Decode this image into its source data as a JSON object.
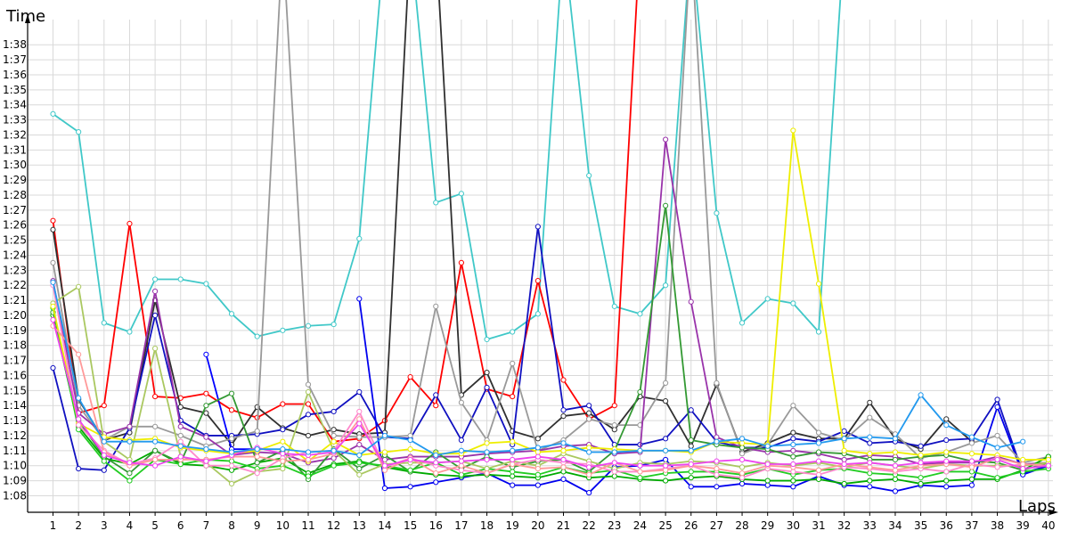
{
  "chart_data": {
    "type": "line",
    "title": "",
    "xlabel": "Laps",
    "ylabel": "Time",
    "x": [
      1,
      2,
      3,
      4,
      5,
      6,
      7,
      8,
      9,
      10,
      11,
      12,
      13,
      14,
      15,
      16,
      17,
      18,
      19,
      20,
      21,
      22,
      23,
      24,
      25,
      26,
      27,
      28,
      29,
      30,
      31,
      32,
      33,
      34,
      35,
      36,
      37,
      38,
      39,
      40
    ],
    "y_ticks": [
      "1:08",
      "1:09",
      "1:10",
      "1:11",
      "1:12",
      "1:13",
      "1:14",
      "1:15",
      "1:16",
      "1:17",
      "1:18",
      "1:19",
      "1:20",
      "1:21",
      "1:22",
      "1:23",
      "1:24",
      "1:25",
      "1:26",
      "1:27",
      "1:28",
      "1:29",
      "1:30",
      "1:31",
      "1:32",
      "1:33",
      "1:34",
      "1:35",
      "1:36",
      "1:37",
      "1:38"
    ],
    "y_tick_seconds": [
      68,
      69,
      70,
      71,
      72,
      73,
      74,
      75,
      76,
      77,
      78,
      79,
      80,
      81,
      82,
      83,
      84,
      85,
      86,
      87,
      88,
      89,
      90,
      91,
      92,
      93,
      94,
      95,
      96,
      97,
      98
    ],
    "ylim_seconds": [
      66.9,
      99.2
    ],
    "xlim": [
      0,
      40.6
    ],
    "grid": true,
    "legend": "none",
    "series": [
      {
        "color": "#40c8c8",
        "values": [
          93.4,
          92.2,
          79.5,
          78.9,
          82.4,
          82.4,
          82.1,
          80.1,
          78.6,
          79.0,
          79.3,
          79.4,
          85.1,
          105,
          105,
          87.5,
          88.1,
          78.4,
          78.9,
          80.1,
          105,
          89.3,
          80.6,
          80.1,
          82.0,
          105,
          86.8,
          79.5,
          81.1,
          80.8,
          78.9,
          105,
          null,
          null,
          null,
          null,
          null,
          null,
          null,
          null
        ]
      },
      {
        "color": "#ff0000",
        "values": [
          86.3,
          73.5,
          74.0,
          86.1,
          74.6,
          74.5,
          74.8,
          73.7,
          73.2,
          74.1,
          74.1,
          71.6,
          71.8,
          73.0,
          75.9,
          74.0,
          83.5,
          75.1,
          74.6,
          82.3,
          75.7,
          73.1,
          74.0,
          105,
          null,
          null,
          null,
          null,
          null,
          null,
          null,
          null,
          null,
          null,
          null,
          null,
          null,
          null,
          null,
          null
        ]
      },
      {
        "color": "#303030",
        "values": [
          85.7,
          74.4,
          71.7,
          72.2,
          81.0,
          73.9,
          73.5,
          71.4,
          73.9,
          72.5,
          72.0,
          72.4,
          72.1,
          72.2,
          105,
          null,
          null,
          null,
          null,
          null,
          null,
          null,
          null,
          null,
          null,
          null,
          null,
          null,
          null,
          null,
          null,
          null,
          null,
          null,
          null,
          null,
          null,
          null,
          null,
          null
        ]
      },
      {
        "color": "#303030",
        "values": [
          null,
          null,
          null,
          null,
          null,
          null,
          null,
          null,
          null,
          null,
          null,
          null,
          null,
          null,
          null,
          105,
          74.7,
          76.2,
          72.3,
          71.8,
          73.3,
          73.5,
          72.4,
          74.6,
          74.3,
          71.3,
          75.4,
          70.9,
          71.5,
          72.2,
          71.8,
          71.8,
          74.2,
          71.8,
          71.1,
          73.1,
          71.6,
          null,
          null,
          null
        ]
      },
      {
        "color": "#1010c0",
        "values": [
          76.5,
          69.8,
          69.7,
          72.5,
          80.0,
          73.0,
          72.0,
          72.0,
          72.1,
          72.4,
          73.4,
          73.6,
          74.9,
          71.9,
          71.8,
          74.7,
          71.7,
          75.2,
          71.4,
          85.9,
          73.7,
          74.0,
          71.4,
          71.4,
          71.8,
          73.7,
          71.6,
          71.2,
          71.2,
          71.8,
          71.6,
          72.3,
          71.5,
          71.6,
          71.3,
          71.7,
          71.8,
          74.4,
          69.5,
          70.0
        ]
      },
      {
        "color": "#0000ee",
        "values": [
          null,
          null,
          null,
          null,
          null,
          null,
          null,
          null,
          null,
          null,
          null,
          null,
          81.1,
          68.5,
          68.6,
          68.9,
          69.2,
          69.5,
          68.7,
          68.7,
          69.1,
          68.2,
          69.9,
          70.0,
          70.4,
          68.6,
          68.6,
          68.8,
          68.7,
          68.6,
          69.3,
          68.7,
          68.6,
          68.3,
          68.7,
          68.6,
          68.7,
          73.9,
          69.4,
          70.0
        ]
      },
      {
        "color": "#0000ff",
        "values": [
          null,
          null,
          null,
          null,
          null,
          null,
          77.4,
          71.1,
          71.1,
          null,
          null,
          null,
          null,
          null,
          null,
          null,
          null,
          null,
          null,
          null,
          null,
          null,
          null,
          null,
          null,
          null,
          null,
          null,
          null,
          null,
          null,
          null,
          null,
          null,
          null,
          null,
          null,
          null,
          null,
          null
        ]
      },
      {
        "color": "#999999",
        "values": [
          83.5,
          74.0,
          71.7,
          72.6,
          72.6,
          72.0,
          71.3,
          71.8,
          72.3,
          105,
          75.4,
          72.0,
          71.9,
          71.9,
          72.0,
          80.6,
          74.2,
          71.7,
          76.8,
          71.0,
          71.7,
          73.1,
          72.7,
          72.7,
          75.5,
          105,
          75.5,
          70.8,
          71.4,
          74.0,
          72.2,
          71.7,
          73.2,
          72.1,
          70.5,
          70.9,
          71.5,
          72.0,
          70.2,
          70.6
        ]
      },
      {
        "color": "#9933aa",
        "values": [
          82.3,
          73.5,
          72.1,
          72.6,
          81.6,
          72.6,
          71.9,
          70.7,
          70.9,
          70.8,
          70.2,
          70.5,
          71.4,
          70.4,
          70.6,
          70.6,
          70.6,
          70.8,
          70.9,
          71.0,
          71.3,
          71.4,
          70.8,
          70.9,
          91.7,
          80.9,
          71.9,
          71.2,
          70.9,
          71.0,
          70.8,
          70.4,
          70.7,
          70.6,
          70.1,
          70.2,
          70.2,
          70.6,
          70.1,
          70.2
        ]
      },
      {
        "color": "#00aa00",
        "values": [
          80.0,
          72.6,
          70.5,
          70.1,
          71.0,
          70.1,
          70.0,
          69.7,
          70.2,
          70.5,
          69.5,
          70.1,
          70.3,
          69.9,
          69.6,
          69.4,
          69.3,
          69.4,
          69.3,
          69.2,
          69.6,
          69.2,
          69.3,
          69.1,
          69.0,
          69.2,
          69.3,
          69.1,
          69.0,
          69.0,
          69.1,
          68.8,
          69.0,
          69.1,
          68.8,
          69.0,
          69.1,
          69.1,
          69.7,
          70.6
        ]
      },
      {
        "color": "#339933",
        "values": [
          80.2,
          73.0,
          70.6,
          69.5,
          71.0,
          70.2,
          74.0,
          74.8,
          70.2,
          71.0,
          69.1,
          71.1,
          69.8,
          70.7,
          69.6,
          70.9,
          69.8,
          70.6,
          69.9,
          70.3,
          70.4,
          69.6,
          71.0,
          74.9,
          87.3,
          71.7,
          71.4,
          71.2,
          71.1,
          70.6,
          70.9,
          70.8,
          70.4,
          70.4,
          70.6,
          70.7,
          70.3,
          70.2,
          69.7,
          70.2
        ]
      },
      {
        "color": "#22cc22",
        "values": [
          80.5,
          72.4,
          70.3,
          69.0,
          70.4,
          70.1,
          70.4,
          70.3,
          69.8,
          70.0,
          69.3,
          70.0,
          70.2,
          70.0,
          69.7,
          70.2,
          69.4,
          69.8,
          69.6,
          69.4,
          69.9,
          69.5,
          69.7,
          69.2,
          69.5,
          69.6,
          69.6,
          69.4,
          69.8,
          69.4,
          69.7,
          69.8,
          69.5,
          69.4,
          69.2,
          69.6,
          69.6,
          69.2,
          69.6,
          69.8
        ]
      },
      {
        "color": "#aac860",
        "values": [
          80.8,
          81.9,
          71.6,
          70.4,
          77.8,
          70.6,
          70.2,
          68.8,
          69.6,
          69.8,
          74.9,
          71.0,
          69.4,
          70.1,
          70.2,
          70.2,
          70.3,
          69.8,
          70.3,
          70.0,
          70.8,
          70.3,
          69.8,
          70.2,
          70.1,
          70.3,
          70.2,
          69.9,
          70.2,
          70.0,
          70.2,
          69.9,
          70.2,
          70.0,
          69.8,
          70.1,
          70.0,
          70.0,
          70.0,
          70.2
        ]
      },
      {
        "color": "#eeee00",
        "values": [
          80.6,
          72.8,
          71.9,
          71.7,
          71.8,
          71.2,
          71.0,
          70.8,
          71.0,
          71.6,
          70.3,
          71.6,
          70.7,
          70.9,
          71.1,
          70.8,
          70.8,
          71.5,
          71.6,
          70.9,
          71.0,
          71.2,
          71.1,
          71.0,
          71.0,
          70.9,
          71.6,
          71.5,
          71.4,
          92.3,
          82.1,
          71.0,
          70.8,
          70.9,
          70.7,
          70.9,
          70.8,
          70.7,
          70.4,
          70.4
        ]
      },
      {
        "color": "#ff88cc",
        "values": [
          82.0,
          72.7,
          71.0,
          70.1,
          70.5,
          71.6,
          70.0,
          70.0,
          69.5,
          70.5,
          70.9,
          71.0,
          73.6,
          69.9,
          70.5,
          70.0,
          69.7,
          69.5,
          70.1,
          70.4,
          70.2,
          70.1,
          69.6,
          69.6,
          69.8,
          70.0,
          69.4,
          69.2,
          69.8,
          69.6,
          69.4,
          69.9,
          69.8,
          69.6,
          69.8,
          69.6,
          70.1,
          69.9,
          70.1,
          70.0
        ]
      },
      {
        "color": "#ff9999",
        "values": [
          79.3,
          77.4,
          70.9,
          70.0,
          70.4,
          70.4,
          70.4,
          70.6,
          70.6,
          70.3,
          70.4,
          70.8,
          73.1,
          69.7,
          70.5,
          69.5,
          70.0,
          69.5,
          70.1,
          69.8,
          69.9,
          69.4,
          70.2,
          69.6,
          69.7,
          70.0,
          69.8,
          69.5,
          70.0,
          69.9,
          69.7,
          70.1,
          69.9,
          69.7,
          70.0,
          70.1,
          69.9,
          70.5,
          70.1,
          70.0
        ]
      },
      {
        "color": "#ee44ee",
        "values": [
          79.7,
          73.1,
          70.7,
          70.2,
          70.0,
          70.6,
          70.3,
          70.7,
          71.2,
          70.8,
          70.7,
          70.9,
          72.8,
          70.0,
          70.4,
          70.2,
          70.3,
          70.4,
          70.4,
          70.6,
          70.4,
          69.9,
          70.2,
          70.0,
          70.0,
          70.1,
          70.3,
          70.4,
          70.1,
          70.1,
          70.3,
          70.1,
          70.2,
          70.0,
          70.2,
          70.3,
          70.3,
          70.4,
          69.8,
          70.0
        ]
      },
      {
        "color": "#2299ee",
        "values": [
          82.2,
          74.5,
          71.6,
          71.6,
          71.6,
          71.3,
          71.1,
          70.9,
          71.1,
          71.1,
          70.9,
          71.0,
          70.7,
          72.0,
          71.7,
          70.7,
          71.0,
          70.9,
          71.0,
          71.2,
          71.5,
          70.9,
          70.9,
          71.0,
          71.0,
          71.0,
          71.6,
          71.8,
          71.3,
          71.4,
          71.5,
          71.8,
          71.9,
          71.8,
          74.7,
          72.7,
          71.9,
          71.2,
          71.6,
          null
        ]
      }
    ]
  }
}
